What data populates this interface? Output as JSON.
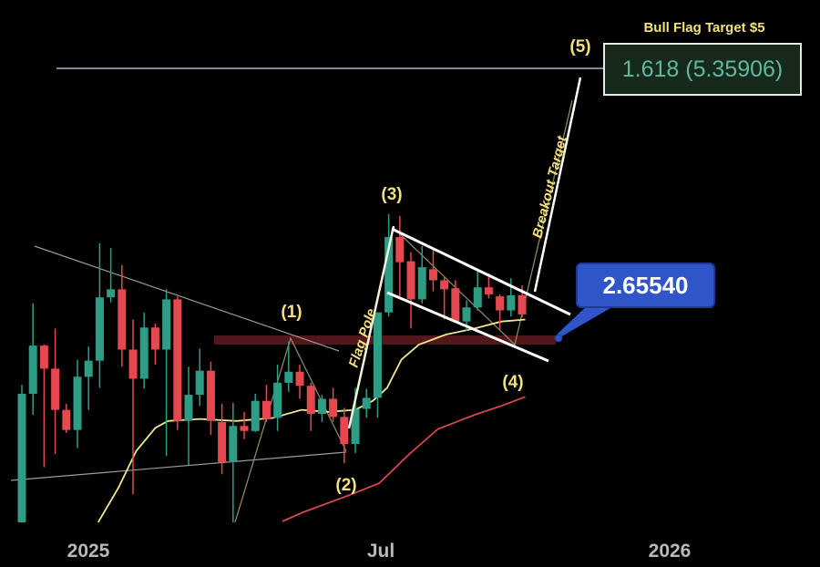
{
  "chart_data": {
    "type": "candlestick",
    "x_axis": {
      "tick_labels": [
        "2025",
        "Jul",
        "2026"
      ],
      "tick_dates": [
        "2025-01-01",
        "2025-07-01",
        "2026-01-01"
      ]
    },
    "grid": false,
    "colors": {
      "up": "#2f9c86",
      "down": "#e5484f",
      "short_ma": "#f0e68c",
      "long_ma": "#d9474b",
      "fib_line": "#9fb6c9",
      "zone": "#5a1a1e",
      "callout": "#2f55c9"
    },
    "candles": {
      "dates": [
        "2024-11-18",
        "2024-11-25",
        "2024-12-02",
        "2024-12-09",
        "2024-12-16",
        "2024-12-23",
        "2024-12-30",
        "2025-01-06",
        "2025-01-13",
        "2025-01-20",
        "2025-01-27",
        "2025-02-03",
        "2025-02-10",
        "2025-02-17",
        "2025-02-24",
        "2025-03-03",
        "2025-03-10",
        "2025-03-17",
        "2025-03-24",
        "2025-03-31",
        "2025-04-07",
        "2025-04-14",
        "2025-04-21",
        "2025-04-28",
        "2025-05-05",
        "2025-05-12",
        "2025-05-19",
        "2025-05-26",
        "2025-06-02",
        "2025-06-09",
        "2025-06-16",
        "2025-06-23",
        "2025-06-30",
        "2025-07-07",
        "2025-07-14",
        "2025-07-21",
        "2025-07-28",
        "2025-08-04",
        "2025-08-11",
        "2025-08-18",
        "2025-08-25",
        "2025-09-01",
        "2025-09-08",
        "2025-09-15",
        "2025-09-22",
        "2025-09-29"
      ],
      "ohlc": [
        [
          0.84,
          2.21,
          0.84,
          2.12
        ],
        [
          2.12,
          3.02,
          1.91,
          2.6
        ],
        [
          2.6,
          2.61,
          1.39,
          2.37
        ],
        [
          2.37,
          2.77,
          1.52,
          1.96
        ],
        [
          1.96,
          2.02,
          1.73,
          1.76
        ],
        [
          1.76,
          2.46,
          1.58,
          2.29
        ],
        [
          2.29,
          2.59,
          1.96,
          2.45
        ],
        [
          2.45,
          3.62,
          2.18,
          3.08
        ],
        [
          3.08,
          3.57,
          3.03,
          3.16
        ],
        [
          3.16,
          3.4,
          2.39,
          2.56
        ],
        [
          2.56,
          2.86,
          1.12,
          2.27
        ],
        [
          2.27,
          2.93,
          2.17,
          2.78
        ],
        [
          2.78,
          2.82,
          2.41,
          2.56
        ],
        [
          2.56,
          3.16,
          1.5,
          3.06
        ],
        [
          3.06,
          3.09,
          1.76,
          1.85
        ],
        [
          1.85,
          2.39,
          1.41,
          2.11
        ],
        [
          2.11,
          2.57,
          2.0,
          2.35
        ],
        [
          2.35,
          2.44,
          1.71,
          1.85
        ],
        [
          1.84,
          2.02,
          1.32,
          1.44
        ],
        [
          1.44,
          2.03,
          0.84,
          1.8
        ],
        [
          1.8,
          1.94,
          1.67,
          1.75
        ],
        [
          1.75,
          2.12,
          1.74,
          2.05
        ],
        [
          2.05,
          2.21,
          1.84,
          1.87
        ],
        [
          1.88,
          2.41,
          1.75,
          2.23
        ],
        [
          2.23,
          2.64,
          2.14,
          2.34
        ],
        [
          2.34,
          2.41,
          2.07,
          2.2
        ],
        [
          2.2,
          2.23,
          1.75,
          1.92
        ],
        [
          1.92,
          2.11,
          1.84,
          2.07
        ],
        [
          2.07,
          2.18,
          1.84,
          1.89
        ],
        [
          1.89,
          1.98,
          1.43,
          1.62
        ],
        [
          1.62,
          2.18,
          1.53,
          1.97
        ],
        [
          1.97,
          2.17,
          1.88,
          2.08
        ],
        [
          2.08,
          2.93,
          1.88,
          2.93
        ],
        [
          2.93,
          3.91,
          2.89,
          3.68
        ],
        [
          3.68,
          3.89,
          3.09,
          3.43
        ],
        [
          3.44,
          3.53,
          2.77,
          3.06
        ],
        [
          3.06,
          3.59,
          3.02,
          3.38
        ],
        [
          3.36,
          3.57,
          3.14,
          3.25
        ],
        [
          3.25,
          3.29,
          2.86,
          3.16
        ],
        [
          3.17,
          3.25,
          2.84,
          2.84
        ],
        [
          2.84,
          3.05,
          2.75,
          2.98
        ],
        [
          2.98,
          3.36,
          2.95,
          3.18
        ],
        [
          3.18,
          3.32,
          3.07,
          3.11
        ],
        [
          3.09,
          3.11,
          2.75,
          2.95
        ],
        [
          2.95,
          3.27,
          2.89,
          3.1
        ],
        [
          3.1,
          3.2,
          2.88,
          2.91
        ]
      ]
    },
    "short_ma": [
      [
        "2025-01-05",
        0.84
      ],
      [
        "2025-01-18",
        1.19
      ],
      [
        "2025-01-29",
        1.55
      ],
      [
        "2025-02-10",
        1.78
      ],
      [
        "2025-02-18",
        1.85
      ],
      [
        "2025-03-10",
        1.87
      ],
      [
        "2025-04-02",
        1.85
      ],
      [
        "2025-04-25",
        1.88
      ],
      [
        "2025-05-13",
        1.96
      ],
      [
        "2025-05-30",
        1.94
      ],
      [
        "2025-06-16",
        1.96
      ],
      [
        "2025-06-27",
        2.05
      ],
      [
        "2025-07-06",
        2.18
      ],
      [
        "2025-07-15",
        2.46
      ],
      [
        "2025-07-26",
        2.61
      ],
      [
        "2025-08-12",
        2.71
      ],
      [
        "2025-08-30",
        2.77
      ],
      [
        "2025-09-16",
        2.84
      ],
      [
        "2025-10-01",
        2.86
      ]
    ],
    "long_ma": [
      [
        "2025-05-01",
        0.85
      ],
      [
        "2025-05-14",
        0.94
      ],
      [
        "2025-06-12",
        1.11
      ],
      [
        "2025-07-01",
        1.23
      ],
      [
        "2025-07-20",
        1.52
      ],
      [
        "2025-08-07",
        1.77
      ],
      [
        "2025-08-30",
        1.91
      ],
      [
        "2025-09-16",
        2.0
      ],
      [
        "2025-10-01",
        2.09
      ]
    ],
    "annotations": {
      "wave_labels": [
        "(1)",
        "(2)",
        "(3)",
        "(4)",
        "(5)"
      ],
      "flag_pole": "Flag Pole",
      "breakout_target": "Breakout Target",
      "fib_title": "Bull Flag Target $5",
      "fib_level": "1.618 (5.35906)",
      "price_callout": "2.65540"
    }
  }
}
